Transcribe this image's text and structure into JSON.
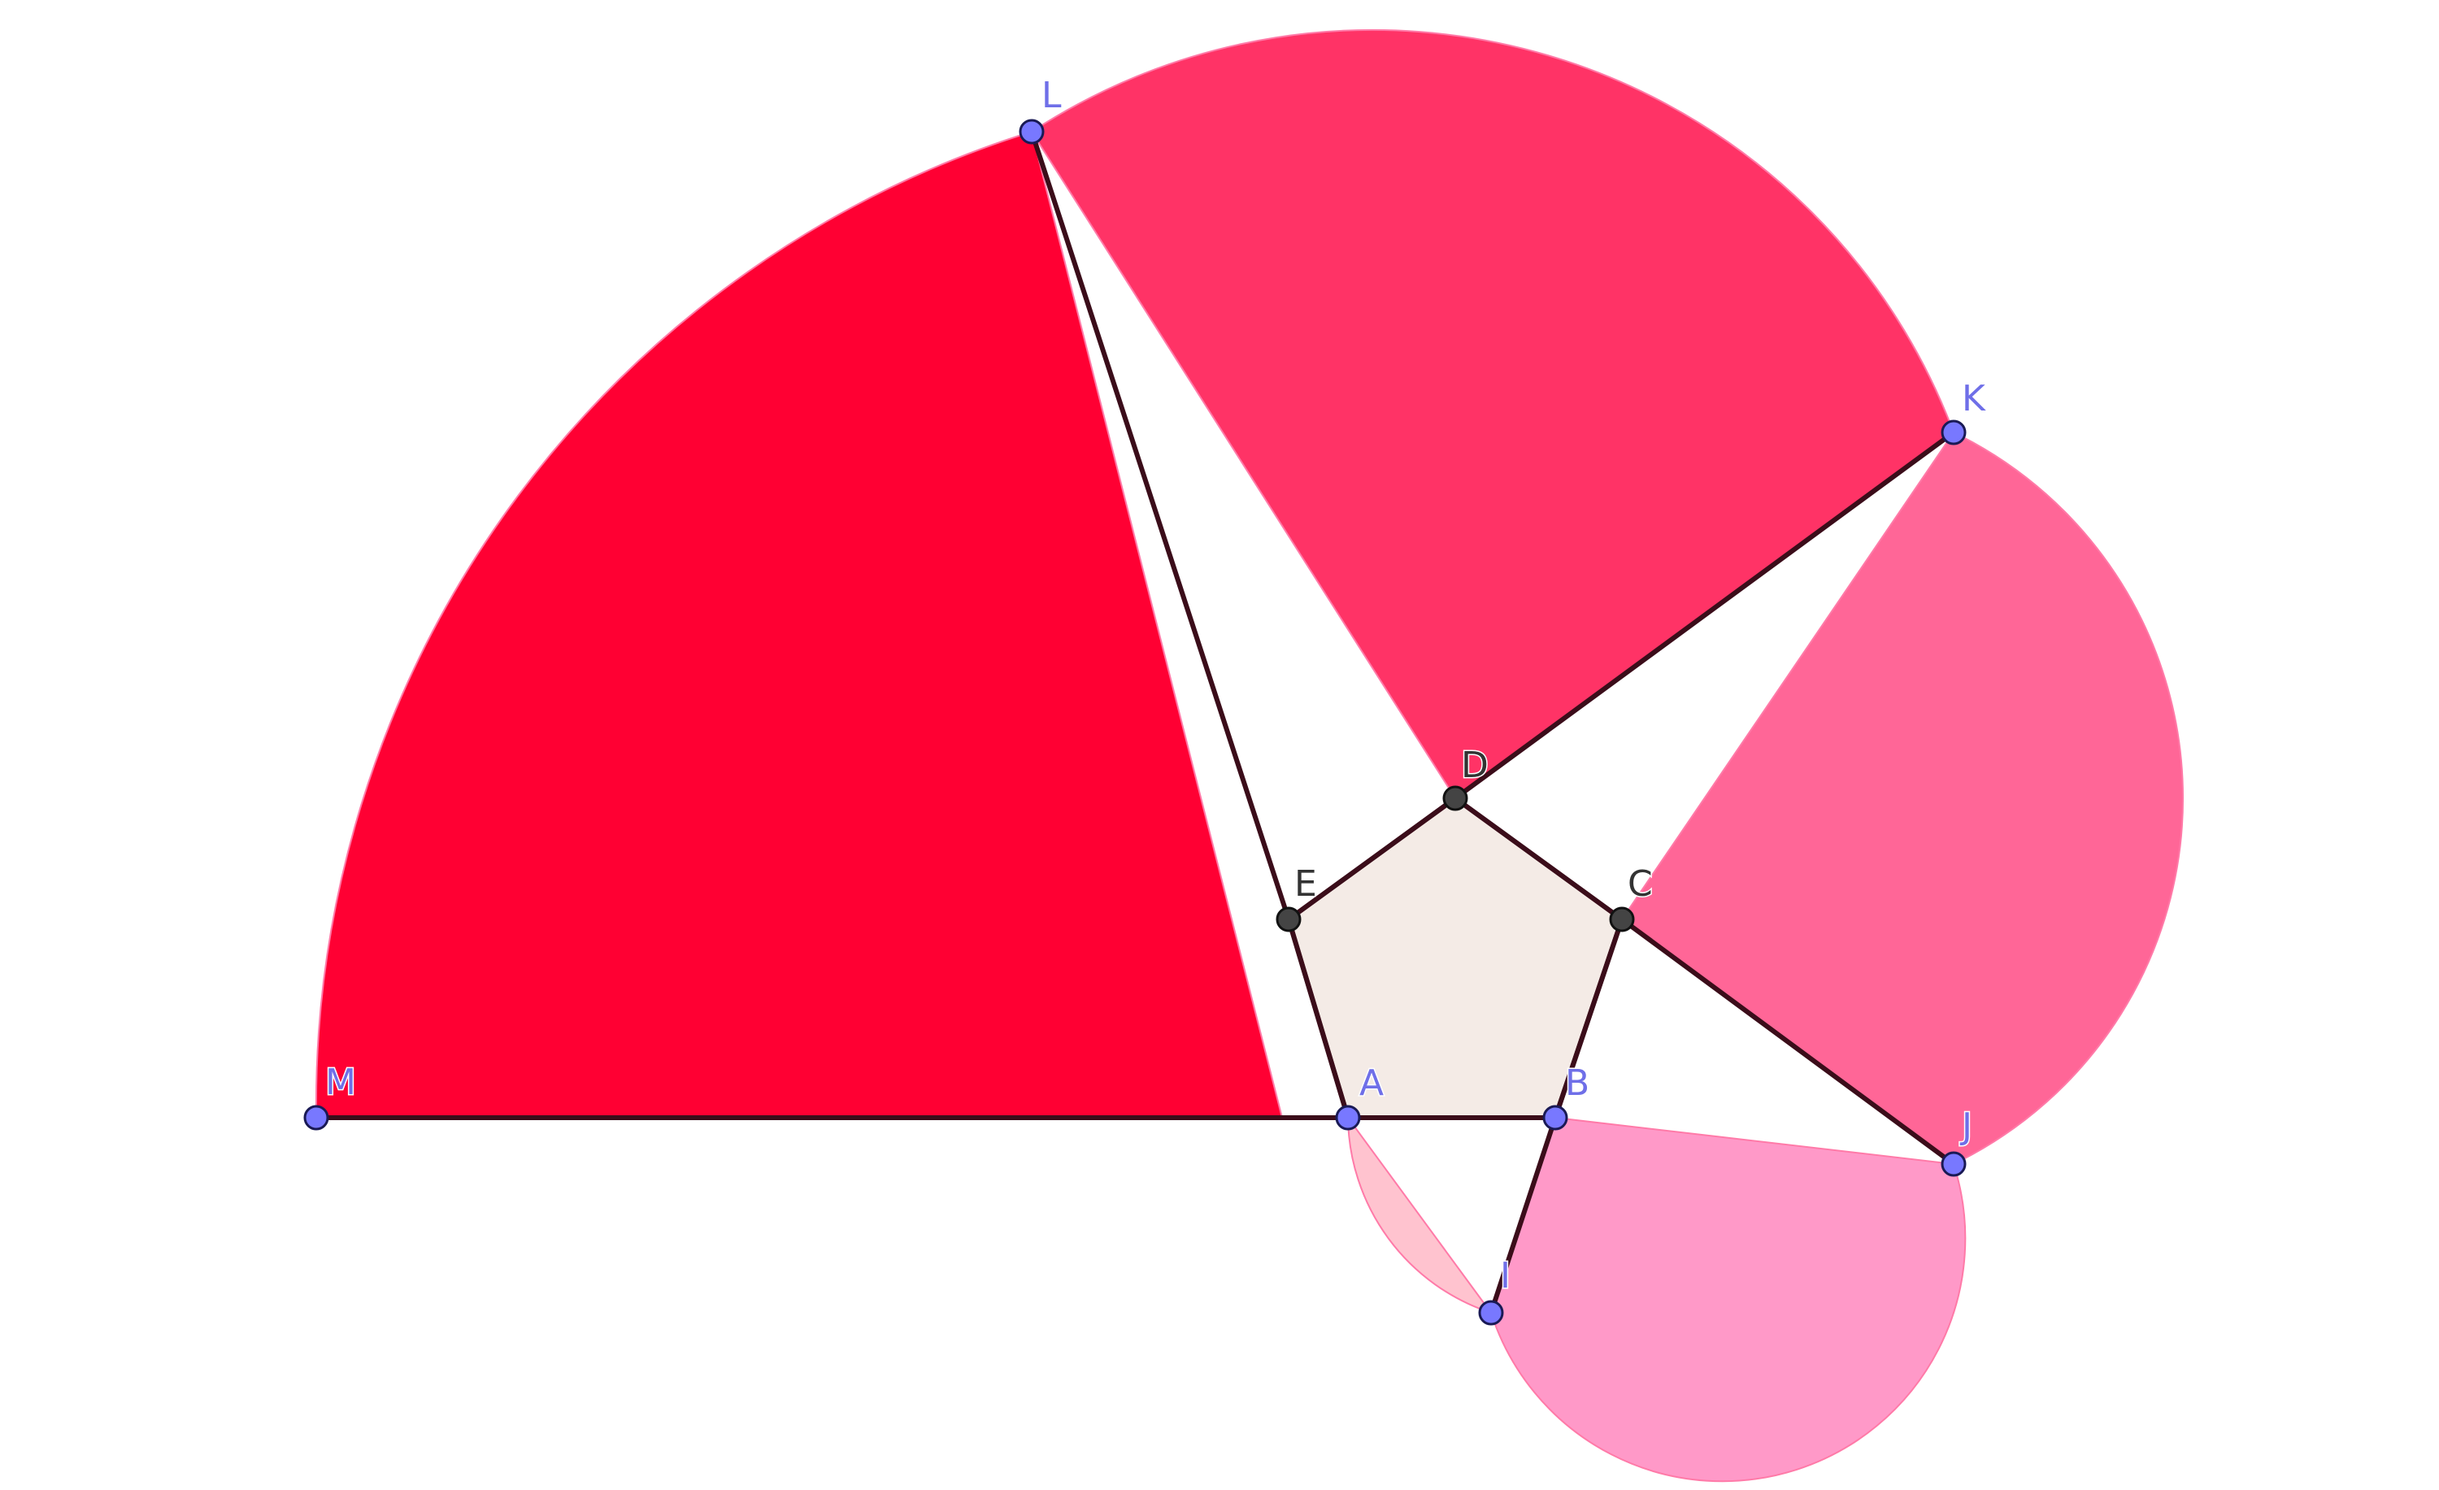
{
  "figure": {
    "description_type": "pentagon spiral of sectors",
    "colors": {
      "sector_AI": "#ffc3cf",
      "sector_BJ": "#ff99c8",
      "sector_CK": "#ff6697",
      "sector_DL": "#ff3366",
      "sector_EM": "#ff0033",
      "pentagon_fill": "#f4ebe6",
      "segment_stroke": "#3b0d1a",
      "free_point": "#7878ff",
      "dependent_point": "#444444",
      "free_label": "#6f6fe8",
      "dependent_label": "#333333"
    },
    "points": {
      "A": {
        "label": "A",
        "kind": "free"
      },
      "B": {
        "label": "B",
        "kind": "free"
      },
      "C": {
        "label": "C",
        "kind": "dependent"
      },
      "D": {
        "label": "D",
        "kind": "dependent"
      },
      "E": {
        "label": "E",
        "kind": "dependent"
      },
      "I": {
        "label": "I",
        "kind": "free"
      },
      "J": {
        "label": "J",
        "kind": "free"
      },
      "K": {
        "label": "K",
        "kind": "free"
      },
      "L": {
        "label": "L",
        "kind": "free"
      },
      "M": {
        "label": "M",
        "kind": "free"
      }
    }
  }
}
